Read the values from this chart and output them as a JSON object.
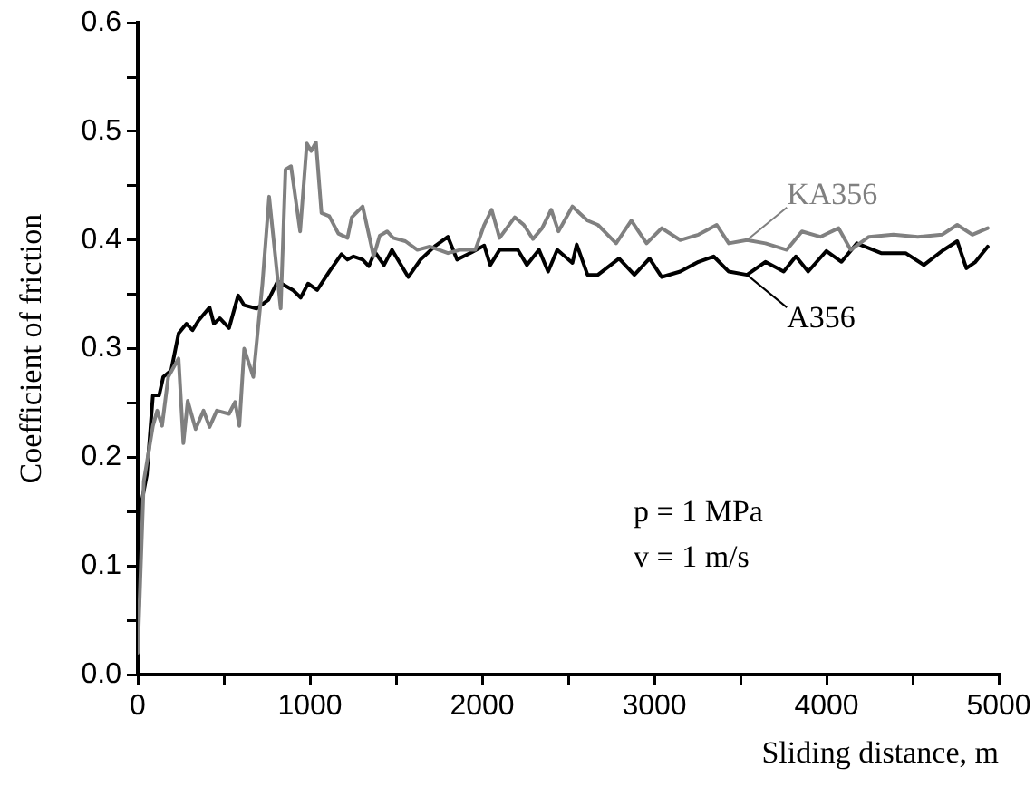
{
  "chart_data": {
    "type": "line",
    "xlabel": "Sliding distance, m",
    "ylabel": "Coefficient of friction",
    "xlim": [
      0,
      5000
    ],
    "ylim": [
      0,
      0.6
    ],
    "xticks": [
      0,
      {
        "value": 500,
        "label": null
      },
      1000,
      {
        "value": 1500,
        "label": null
      },
      2000,
      {
        "value": 2500,
        "label": null
      },
      3000,
      {
        "value": 3500,
        "label": null
      },
      4000,
      {
        "value": 4500,
        "label": null
      },
      5000
    ],
    "yticks": [
      {
        "value": 0,
        "label": "0.0"
      },
      {
        "value": 0.05,
        "label": null
      },
      {
        "value": 0.1,
        "label": "0.1"
      },
      {
        "value": 0.15,
        "label": null
      },
      {
        "value": 0.2,
        "label": "0.2"
      },
      {
        "value": 0.25,
        "label": null
      },
      {
        "value": 0.3,
        "label": "0.3"
      },
      {
        "value": 0.35,
        "label": null
      },
      {
        "value": 0.4,
        "label": "0.4"
      },
      {
        "value": 0.45,
        "label": null
      },
      {
        "value": 0.5,
        "label": "0.5"
      },
      {
        "value": 0.55,
        "label": null
      },
      {
        "value": 0.6,
        "label": "0.6"
      }
    ],
    "grid": false,
    "legend": "right",
    "marker": "none",
    "line_style": "solid",
    "series": [
      {
        "name": "KA356",
        "color": "#808080",
        "x": [
          0,
          35,
          88,
          113,
          141,
          177,
          237,
          265,
          290,
          336,
          382,
          417,
          459,
          530,
          565,
          590,
          618,
          671,
          724,
          763,
          830,
          858,
          890,
          943,
          982,
          1007,
          1035,
          1067,
          1112,
          1165,
          1218,
          1243,
          1306,
          1370,
          1405,
          1448,
          1483,
          1554,
          1624,
          1695,
          1801,
          1871,
          1960,
          2012,
          2055,
          2101,
          2189,
          2242,
          2295,
          2348,
          2401,
          2443,
          2524,
          2612,
          2672,
          2778,
          2866,
          2955,
          3043,
          3150,
          3256,
          3362,
          3432,
          3538,
          3645,
          3769,
          3857,
          3964,
          4070,
          4140,
          4246,
          4388,
          4530,
          4671,
          4759,
          4847,
          4936
        ],
        "values": [
          0.02,
          0.178,
          0.229,
          0.243,
          0.229,
          0.274,
          0.291,
          0.213,
          0.252,
          0.226,
          0.243,
          0.228,
          0.243,
          0.24,
          0.251,
          0.229,
          0.3,
          0.274,
          0.36,
          0.44,
          0.337,
          0.465,
          0.468,
          0.408,
          0.489,
          0.482,
          0.49,
          0.425,
          0.422,
          0.406,
          0.402,
          0.421,
          0.431,
          0.385,
          0.404,
          0.408,
          0.402,
          0.399,
          0.391,
          0.394,
          0.388,
          0.391,
          0.391,
          0.414,
          0.428,
          0.402,
          0.421,
          0.414,
          0.401,
          0.411,
          0.428,
          0.408,
          0.431,
          0.418,
          0.414,
          0.397,
          0.418,
          0.397,
          0.411,
          0.4,
          0.405,
          0.414,
          0.397,
          0.4,
          0.397,
          0.391,
          0.408,
          0.403,
          0.411,
          0.391,
          0.403,
          0.405,
          0.403,
          0.405,
          0.414,
          0.405,
          0.411
        ]
      },
      {
        "name": "A356",
        "color": "#000000",
        "x": [
          0,
          18,
          53,
          88,
          124,
          148,
          194,
          237,
          283,
          318,
          353,
          417,
          442,
          477,
          530,
          583,
          618,
          689,
          759,
          812,
          901,
          946,
          989,
          1042,
          1112,
          1183,
          1218,
          1253,
          1306,
          1342,
          1377,
          1430,
          1476,
          1571,
          1642,
          1730,
          1801,
          1854,
          1942,
          2012,
          2047,
          2101,
          2207,
          2260,
          2330,
          2383,
          2436,
          2524,
          2549,
          2612,
          2672,
          2795,
          2884,
          2972,
          3043,
          3150,
          3256,
          3344,
          3432,
          3538,
          3645,
          3751,
          3822,
          3893,
          3999,
          4087,
          4176,
          4317,
          4459,
          4565,
          4671,
          4759,
          4812,
          4865,
          4936
        ],
        "values": [
          0.02,
          0.155,
          0.184,
          0.257,
          0.257,
          0.274,
          0.28,
          0.314,
          0.323,
          0.317,
          0.326,
          0.338,
          0.323,
          0.328,
          0.319,
          0.349,
          0.34,
          0.337,
          0.345,
          0.362,
          0.354,
          0.347,
          0.36,
          0.354,
          0.371,
          0.387,
          0.382,
          0.385,
          0.382,
          0.376,
          0.389,
          0.377,
          0.391,
          0.366,
          0.382,
          0.395,
          0.403,
          0.382,
          0.389,
          0.395,
          0.377,
          0.391,
          0.391,
          0.377,
          0.391,
          0.371,
          0.391,
          0.379,
          0.396,
          0.368,
          0.368,
          0.383,
          0.368,
          0.383,
          0.366,
          0.371,
          0.38,
          0.385,
          0.371,
          0.368,
          0.38,
          0.371,
          0.385,
          0.371,
          0.39,
          0.38,
          0.397,
          0.388,
          0.388,
          0.377,
          0.39,
          0.399,
          0.374,
          0.38,
          0.394
        ]
      }
    ],
    "annotations": [
      "p = 1 MPa",
      "v = 1 m/s"
    ]
  }
}
